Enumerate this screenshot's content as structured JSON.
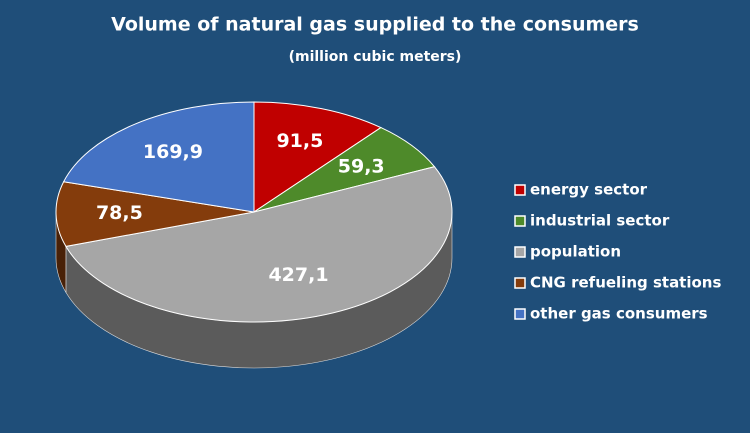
{
  "chart_data": {
    "type": "pie",
    "title": "Volume of natural gas supplied to the consumers",
    "subtitle": "(million cubic meters)",
    "categories": [
      "energy sector",
      "industrial sector",
      "population",
      "CNG refueling stations",
      "other gas consumers"
    ],
    "values": [
      91.5,
      59.3,
      427.1,
      78.5,
      169.9
    ],
    "value_labels": [
      "91,5",
      "59,3",
      "427,1",
      "78,5",
      "169,9"
    ],
    "colors": [
      "#c00000",
      "#4e8a2a",
      "#a6a6a6",
      "#843c0c",
      "#4472c4"
    ],
    "legend": "right"
  }
}
